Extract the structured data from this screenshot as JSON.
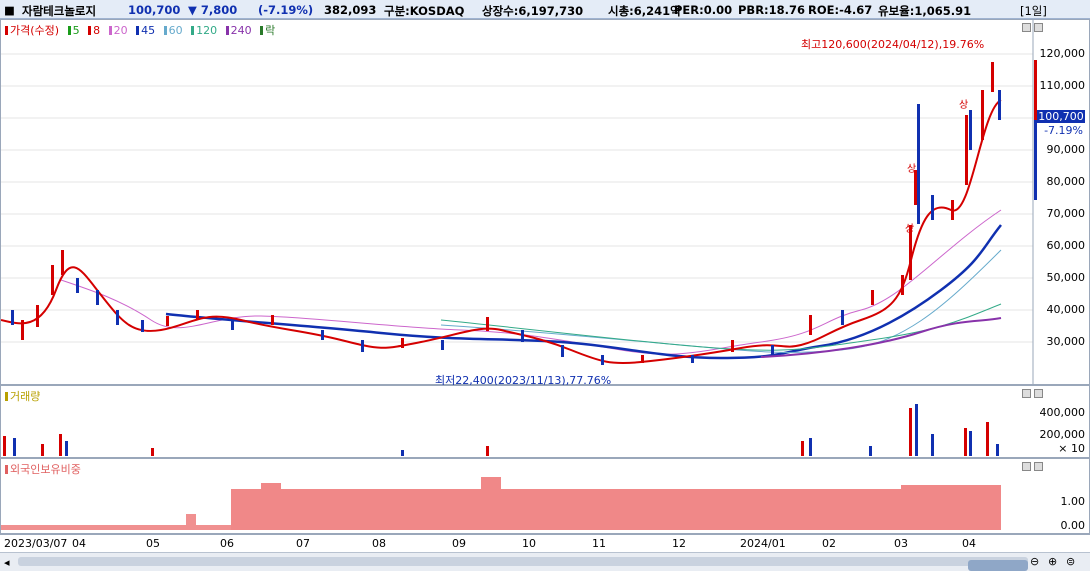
{
  "header": {
    "name": "자람테크놀로지",
    "price": "100,700",
    "change": "▼ 7,800",
    "change_pct": "(-7.19%)",
    "volume": "382,093",
    "market": "구분:KOSDAQ",
    "shares": "상장수:6,197,730",
    "mcap": "시총:6,241억",
    "per": "PER:0.00",
    "pbr": "PBR:18.76",
    "roe": "ROE:-4.67",
    "float": "유보율:1,065.91",
    "period": "[1일]"
  },
  "price_panel": {
    "legend": [
      {
        "label": "가격(수정)",
        "color": "#d40000"
      },
      {
        "label": "5",
        "color": "#1a9c1a"
      },
      {
        "label": "8",
        "color": "#d40000"
      },
      {
        "label": "20",
        "color": "#cc66cc"
      },
      {
        "label": "45",
        "color": "#1030b0"
      },
      {
        "label": "60",
        "color": "#66aacc"
      },
      {
        "label": "120",
        "color": "#33aa88"
      },
      {
        "label": "240",
        "color": "#8833aa"
      },
      {
        "label": "락",
        "color": "#2a7a2a"
      }
    ],
    "y_ticks": [
      "120,000",
      "110,000",
      "100,000",
      "90,000",
      "80,000",
      "70,000",
      "60,000",
      "50,000",
      "40,000",
      "30,000"
    ],
    "price_tag": "100,700",
    "pct_tag": "-7.19%",
    "high_note": "최고120,600(2024/04/12),19.76%",
    "low_note": "최저22,400(2023/11/13),77.76%",
    "markers": [
      "상",
      "상",
      "상"
    ]
  },
  "volume_panel": {
    "legend": "거래량",
    "y_ticks": [
      "400,000",
      "200,000",
      "× 10"
    ]
  },
  "foreign_panel": {
    "legend": "외국인보유비중",
    "y_ticks": [
      "1.00",
      "0.00"
    ]
  },
  "x_labels": [
    "2023/03/07",
    "04",
    "05",
    "06",
    "07",
    "08",
    "09",
    "10",
    "11",
    "12",
    "2024/01",
    "02",
    "03",
    "04"
  ],
  "chart_data": {
    "type": "candlestick",
    "x": [
      "2023/03/07",
      "04",
      "05",
      "06",
      "07",
      "08",
      "09",
      "10",
      "11",
      "12",
      "2024/01",
      "02",
      "03",
      "04"
    ],
    "close_series": [
      42000,
      36000,
      50000,
      33000,
      38000,
      34000,
      36000,
      32000,
      30000,
      38000,
      34000,
      31000,
      26000,
      24000,
      27000,
      32000,
      30000,
      38000,
      45000,
      60000,
      85000,
      72000,
      95000,
      120600,
      100700
    ],
    "ylim": [
      20000,
      125000
    ],
    "high": {
      "value": 120600,
      "date": "2024/04/12"
    },
    "low": {
      "value": 22400,
      "date": "2023/11/13"
    }
  }
}
